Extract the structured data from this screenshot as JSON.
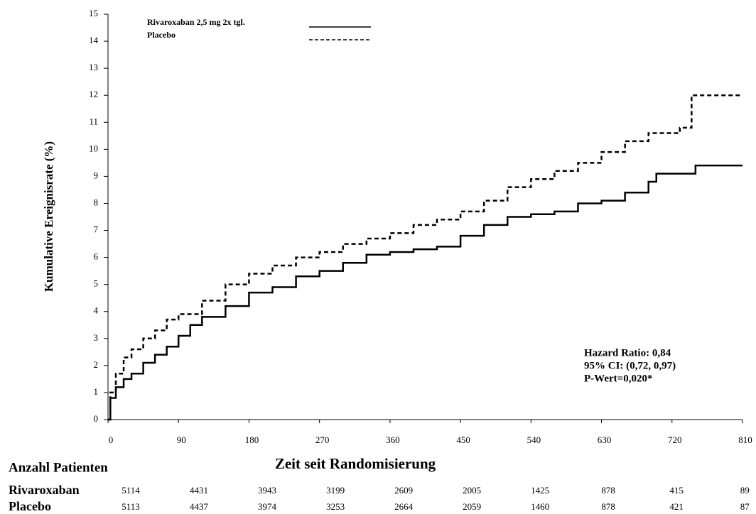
{
  "chart_data": {
    "type": "line",
    "step": true,
    "y_label": "Kumulative Ereignisrate (%)",
    "x_label": "Zeit seit Randomisierung",
    "xlim": [
      0,
      810
    ],
    "xticks": [
      0,
      90,
      180,
      270,
      360,
      450,
      540,
      630,
      720,
      810
    ],
    "ylim": [
      0,
      15
    ],
    "yticks": [
      0,
      1,
      2,
      3,
      4,
      5,
      6,
      7,
      8,
      9,
      10,
      11,
      12,
      13,
      14,
      15
    ],
    "series": [
      {
        "name": "Rivaroxaban 2,5 mg 2x tgl.",
        "color": "#000000",
        "dash": false,
        "x": [
          0,
          3,
          10,
          20,
          30,
          45,
          60,
          75,
          90,
          105,
          120,
          150,
          180,
          210,
          240,
          270,
          300,
          330,
          360,
          390,
          420,
          450,
          480,
          510,
          540,
          570,
          600,
          630,
          660,
          690,
          700,
          750,
          810
        ],
        "values": [
          0,
          0.8,
          1.2,
          1.5,
          1.7,
          2.1,
          2.4,
          2.7,
          3.1,
          3.5,
          3.8,
          4.2,
          4.7,
          4.9,
          5.3,
          5.5,
          5.8,
          6.1,
          6.2,
          6.3,
          6.4,
          6.8,
          7.2,
          7.5,
          7.6,
          7.7,
          8.0,
          8.1,
          8.4,
          8.8,
          9.1,
          9.4,
          9.4
        ]
      },
      {
        "name": "Placebo",
        "color": "#000000",
        "dash": true,
        "x": [
          0,
          3,
          10,
          20,
          30,
          45,
          60,
          75,
          90,
          120,
          150,
          180,
          210,
          240,
          270,
          300,
          330,
          360,
          390,
          420,
          450,
          480,
          510,
          540,
          570,
          600,
          630,
          660,
          690,
          730,
          745,
          810
        ],
        "values": [
          0,
          1.0,
          1.7,
          2.3,
          2.6,
          3.0,
          3.3,
          3.7,
          3.9,
          4.4,
          5.0,
          5.4,
          5.7,
          6.0,
          6.2,
          6.5,
          6.7,
          6.9,
          7.2,
          7.4,
          7.7,
          8.1,
          8.6,
          8.9,
          9.2,
          9.5,
          9.9,
          10.3,
          10.6,
          10.8,
          12.0,
          12.0
        ]
      }
    ],
    "annotations": [
      "Hazard Ratio: 0,84",
      "95% CI: (0,72, 0,97)",
      "P-Wert=0,020*"
    ],
    "risk_table": {
      "title": "Anzahl Patienten",
      "rows": [
        {
          "name": "Rivaroxaban",
          "values": [
            5114,
            4431,
            3943,
            3199,
            2609,
            2005,
            1425,
            878,
            415,
            89
          ]
        },
        {
          "name": "Placebo",
          "values": [
            5113,
            4437,
            3974,
            3253,
            2664,
            2059,
            1460,
            878,
            421,
            87
          ]
        }
      ]
    }
  }
}
